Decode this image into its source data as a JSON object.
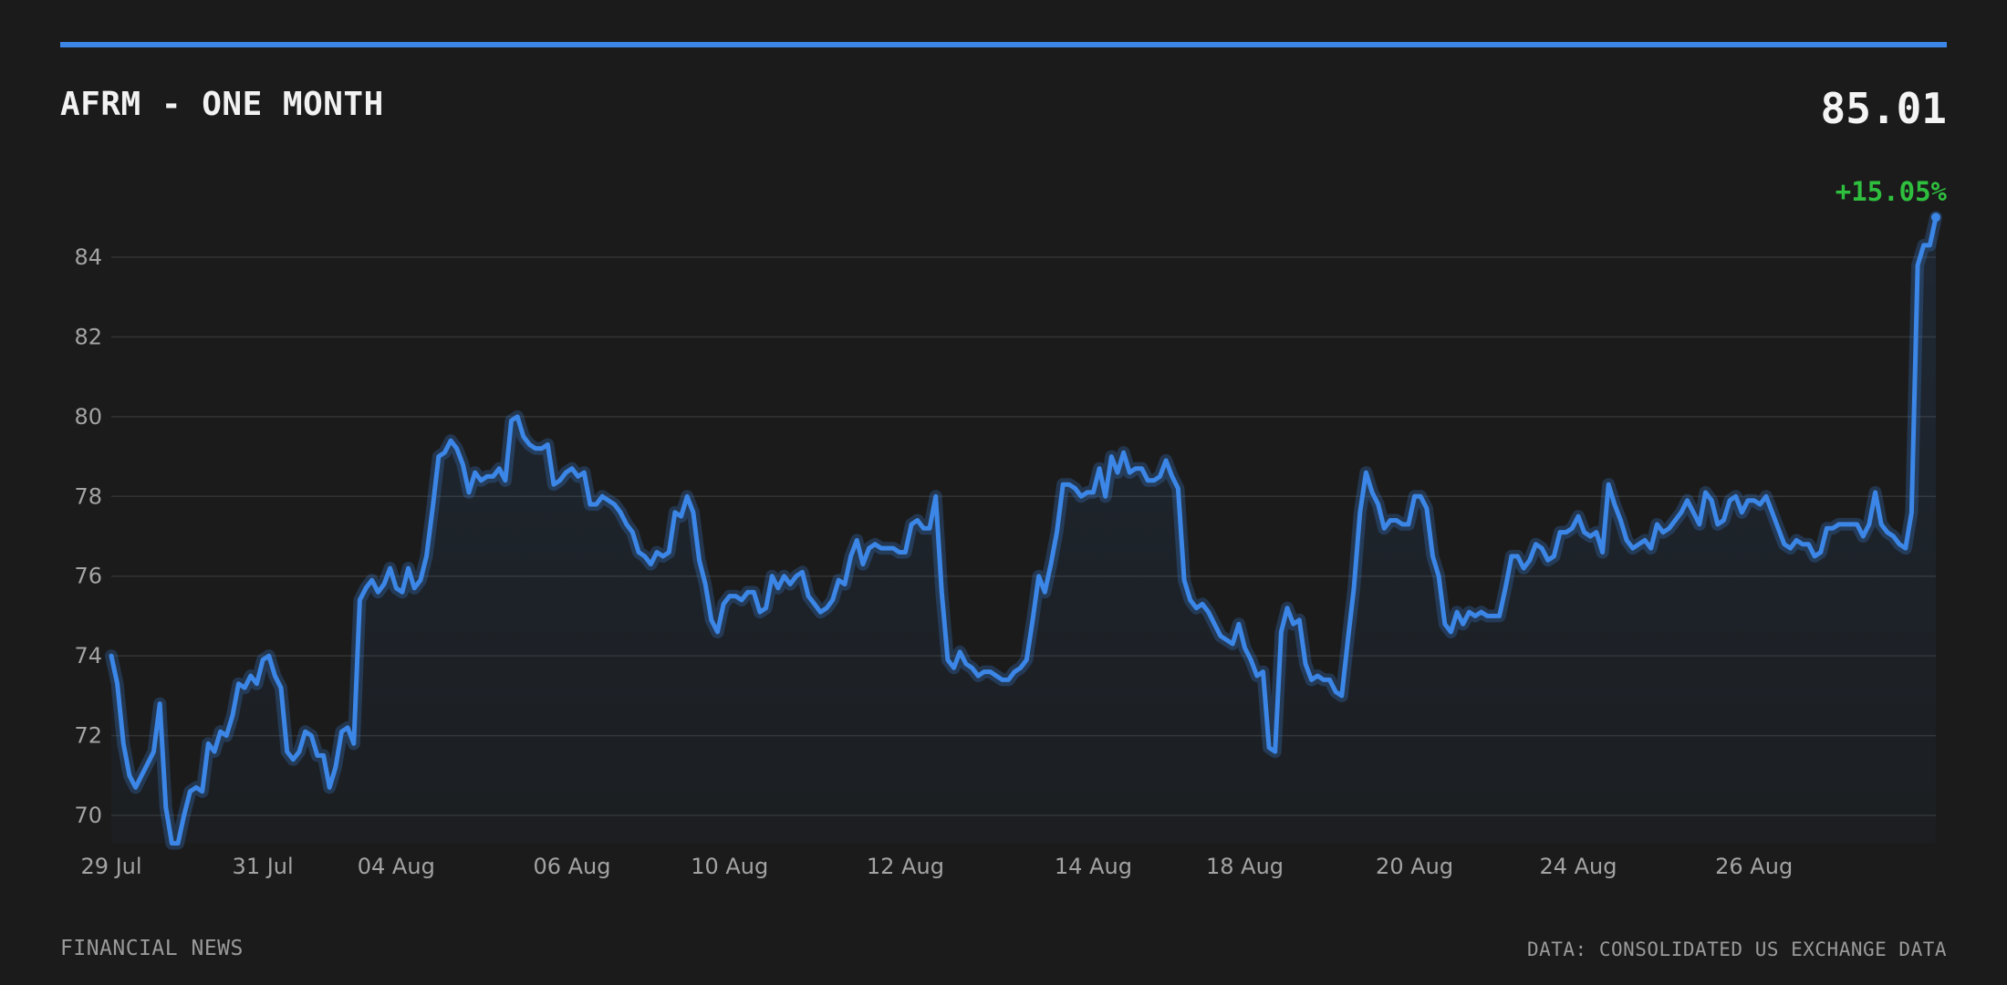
{
  "header": {
    "title": "AFRM - ONE MONTH",
    "price": "85.01",
    "change": "+15.05%"
  },
  "footer": {
    "source_left": "FINANCIAL NEWS",
    "source_right": "DATA: CONSOLIDATED US EXCHANGE DATA"
  },
  "colors": {
    "accent": "#3b86e6",
    "positive": "#2fbf3f",
    "background": "#1b1b1b"
  },
  "chart_data": {
    "type": "area",
    "title": "AFRM - ONE MONTH",
    "xlabel": "",
    "ylabel": "",
    "ylim": [
      69.3,
      85.3
    ],
    "grid": true,
    "y_ticks": [
      70,
      72,
      74,
      76,
      78,
      80,
      82,
      84
    ],
    "x_ticks": [
      {
        "label": "29 Jul",
        "index": 0
      },
      {
        "label": "31 Jul",
        "index": 25
      },
      {
        "label": "04 Aug",
        "index": 47
      },
      {
        "label": "06 Aug",
        "index": 76
      },
      {
        "label": "10 Aug",
        "index": 102
      },
      {
        "label": "12 Aug",
        "index": 131
      },
      {
        "label": "14 Aug",
        "index": 162
      },
      {
        "label": "18 Aug",
        "index": 187
      },
      {
        "label": "20 Aug",
        "index": 215
      },
      {
        "label": "24 Aug",
        "index": 242
      },
      {
        "label": "26 Aug",
        "index": 271
      }
    ],
    "series": [
      {
        "values": [
          74.0,
          73.3,
          71.8,
          71.0,
          70.7,
          71.0,
          71.3,
          71.6,
          72.8,
          70.2,
          69.3,
          69.3,
          70.0,
          70.6,
          70.7,
          70.6,
          71.8,
          71.6,
          72.1,
          72.0,
          72.5,
          73.3,
          73.2,
          73.5,
          73.3,
          73.9,
          74.0,
          73.5,
          73.2,
          71.6,
          71.4,
          71.6,
          72.1,
          72.0,
          71.5,
          71.5,
          70.7,
          71.2,
          72.1,
          72.2,
          71.8,
          75.4,
          75.7,
          75.9,
          75.6,
          75.8,
          76.2,
          75.7,
          75.6,
          76.2,
          75.7,
          75.9,
          76.5,
          77.7,
          79.0,
          79.1,
          79.4,
          79.2,
          78.8,
          78.1,
          78.6,
          78.4,
          78.5,
          78.5,
          78.7,
          78.4,
          79.9,
          80.0,
          79.5,
          79.3,
          79.2,
          79.2,
          79.3,
          78.3,
          78.4,
          78.6,
          78.7,
          78.5,
          78.6,
          77.8,
          77.8,
          78.0,
          77.9,
          77.8,
          77.6,
          77.3,
          77.1,
          76.6,
          76.5,
          76.3,
          76.6,
          76.5,
          76.6,
          77.6,
          77.5,
          78.0,
          77.6,
          76.4,
          75.8,
          74.9,
          74.6,
          75.3,
          75.5,
          75.5,
          75.4,
          75.6,
          75.6,
          75.1,
          75.2,
          76.0,
          75.7,
          76.0,
          75.8,
          76.0,
          76.1,
          75.5,
          75.3,
          75.1,
          75.2,
          75.4,
          75.9,
          75.8,
          76.5,
          76.9,
          76.3,
          76.7,
          76.8,
          76.7,
          76.7,
          76.7,
          76.6,
          76.6,
          77.3,
          77.4,
          77.2,
          77.2,
          78.0,
          75.6,
          73.9,
          73.7,
          74.1,
          73.8,
          73.7,
          73.5,
          73.6,
          73.6,
          73.5,
          73.4,
          73.4,
          73.6,
          73.7,
          73.9,
          74.9,
          76.0,
          75.6,
          76.3,
          77.1,
          78.3,
          78.3,
          78.2,
          78.0,
          78.1,
          78.1,
          78.7,
          78.0,
          79.0,
          78.6,
          79.1,
          78.6,
          78.7,
          78.7,
          78.4,
          78.4,
          78.5,
          78.9,
          78.5,
          78.2,
          75.9,
          75.4,
          75.2,
          75.3,
          75.1,
          74.8,
          74.5,
          74.4,
          74.3,
          74.8,
          74.2,
          73.9,
          73.5,
          73.6,
          71.7,
          71.6,
          74.6,
          75.2,
          74.8,
          74.9,
          73.8,
          73.4,
          73.5,
          73.4,
          73.4,
          73.1,
          73.0,
          74.4,
          75.7,
          77.6,
          78.6,
          78.1,
          77.8,
          77.2,
          77.4,
          77.4,
          77.3,
          77.3,
          78.0,
          78.0,
          77.7,
          76.5,
          76.0,
          74.8,
          74.6,
          75.1,
          74.8,
          75.1,
          75.0,
          75.1,
          75.0,
          75.0,
          75.0,
          75.7,
          76.5,
          76.5,
          76.2,
          76.4,
          76.8,
          76.7,
          76.4,
          76.5,
          77.1,
          77.1,
          77.2,
          77.5,
          77.1,
          77.0,
          77.1,
          76.6,
          78.3,
          77.8,
          77.4,
          76.9,
          76.7,
          76.8,
          76.9,
          76.7,
          77.3,
          77.1,
          77.2,
          77.4,
          77.6,
          77.9,
          77.6,
          77.3,
          78.1,
          77.9,
          77.3,
          77.4,
          77.9,
          78.0,
          77.6,
          77.9,
          77.9,
          77.8,
          78.0,
          77.6,
          77.2,
          76.8,
          76.7,
          76.9,
          76.8,
          76.8,
          76.5,
          76.6,
          77.2,
          77.2,
          77.3,
          77.3,
          77.3,
          77.3,
          77.0,
          77.3,
          78.1,
          77.3,
          77.1,
          77.0,
          76.8,
          76.7,
          77.6,
          83.8,
          84.3,
          84.3,
          85.0
        ]
      }
    ]
  }
}
